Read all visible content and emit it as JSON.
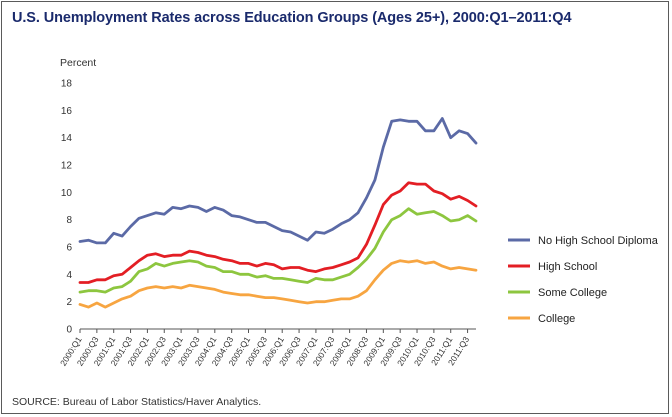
{
  "title": "U.S. Unemployment Rates across Education Groups (Ages 25+), 2000:Q1–2011:Q4",
  "source": "SOURCE: Bureau of Labor Statistics/Haver Analytics.",
  "chart_data": {
    "type": "line",
    "title": "U.S. Unemployment Rates across Education Groups (Ages 25+), 2000:Q1–2011:Q4",
    "xlabel": "",
    "ylabel": "Percent",
    "ylim": [
      0,
      18
    ],
    "yticks": [
      0,
      2,
      4,
      6,
      8,
      10,
      12,
      14,
      16,
      18
    ],
    "grid": false,
    "legend": "right",
    "x": [
      "2000:Q1",
      "2000:Q2",
      "2000:Q3",
      "2000:Q4",
      "2001:Q1",
      "2001:Q2",
      "2001:Q3",
      "2001:Q4",
      "2002:Q1",
      "2002:Q2",
      "2002:Q3",
      "2002:Q4",
      "2003:Q1",
      "2003:Q2",
      "2003:Q3",
      "2003:Q4",
      "2004:Q1",
      "2004:Q2",
      "2004:Q3",
      "2004:Q4",
      "2005:Q1",
      "2005:Q2",
      "2005:Q3",
      "2005:Q4",
      "2006:Q1",
      "2006:Q2",
      "2006:Q3",
      "2006:Q4",
      "2007:Q1",
      "2007:Q2",
      "2007:Q3",
      "2007:Q4",
      "2008:Q1",
      "2008:Q2",
      "2008:Q3",
      "2008:Q4",
      "2009:Q1",
      "2009:Q2",
      "2009:Q3",
      "2009:Q4",
      "2010:Q1",
      "2010:Q2",
      "2010:Q3",
      "2010:Q4",
      "2011:Q1",
      "2011:Q2",
      "2011:Q3",
      "2011:Q4"
    ],
    "x_tick_labels": [
      "2000:Q1",
      "2000:Q3",
      "2001:Q1",
      "2001:Q3",
      "2002:Q1",
      "2002:Q3",
      "2003:Q1",
      "2003:Q3",
      "2004:Q1",
      "2004:Q3",
      "2005:Q1",
      "2005:Q3",
      "2006:Q1",
      "2006:Q3",
      "2007:Q1",
      "2007:Q3",
      "2008:Q1",
      "2008:Q3",
      "2009:Q1",
      "2009:Q3",
      "2010:Q1",
      "2010:Q3",
      "2011:Q1",
      "2011:Q3"
    ],
    "series": [
      {
        "name": "No High School Diploma",
        "color": "#5b6aa6",
        "values": [
          6.4,
          6.5,
          6.3,
          6.3,
          7.0,
          6.8,
          7.5,
          8.1,
          8.3,
          8.5,
          8.4,
          8.9,
          8.8,
          9.0,
          8.9,
          8.6,
          8.9,
          8.7,
          8.3,
          8.2,
          8.0,
          7.8,
          7.8,
          7.5,
          7.2,
          7.1,
          6.8,
          6.5,
          7.1,
          7.0,
          7.3,
          7.7,
          8.0,
          8.5,
          9.6,
          10.9,
          13.3,
          15.2,
          15.3,
          15.2,
          15.2,
          14.5,
          14.5,
          15.4,
          14.0,
          14.5,
          14.3,
          13.6
        ]
      },
      {
        "name": "High School",
        "color": "#e31e24",
        "values": [
          3.4,
          3.4,
          3.6,
          3.6,
          3.9,
          4.0,
          4.5,
          5.0,
          5.4,
          5.5,
          5.3,
          5.4,
          5.4,
          5.7,
          5.6,
          5.4,
          5.3,
          5.1,
          5.0,
          4.8,
          4.8,
          4.6,
          4.8,
          4.7,
          4.4,
          4.5,
          4.5,
          4.3,
          4.2,
          4.4,
          4.5,
          4.7,
          4.9,
          5.2,
          6.2,
          7.6,
          9.1,
          9.8,
          10.1,
          10.7,
          10.6,
          10.6,
          10.1,
          9.9,
          9.5,
          9.7,
          9.4,
          9.0
        ]
      },
      {
        "name": "Some College",
        "color": "#8dc63f",
        "values": [
          2.7,
          2.8,
          2.8,
          2.7,
          3.0,
          3.1,
          3.5,
          4.2,
          4.4,
          4.8,
          4.6,
          4.8,
          4.9,
          5.0,
          4.9,
          4.6,
          4.5,
          4.2,
          4.2,
          4.0,
          4.0,
          3.8,
          3.9,
          3.7,
          3.7,
          3.6,
          3.5,
          3.4,
          3.7,
          3.6,
          3.6,
          3.8,
          4.0,
          4.5,
          5.1,
          5.9,
          7.1,
          8.0,
          8.3,
          8.8,
          8.4,
          8.5,
          8.6,
          8.3,
          7.9,
          8.0,
          8.3,
          7.9
        ]
      },
      {
        "name": "College",
        "color": "#f7a541",
        "values": [
          1.8,
          1.6,
          1.9,
          1.6,
          1.9,
          2.2,
          2.4,
          2.8,
          3.0,
          3.1,
          3.0,
          3.1,
          3.0,
          3.2,
          3.1,
          3.0,
          2.9,
          2.7,
          2.6,
          2.5,
          2.5,
          2.4,
          2.3,
          2.3,
          2.2,
          2.1,
          2.0,
          1.9,
          2.0,
          2.0,
          2.1,
          2.2,
          2.2,
          2.4,
          2.8,
          3.6,
          4.3,
          4.8,
          5.0,
          4.9,
          5.0,
          4.8,
          4.9,
          4.6,
          4.4,
          4.5,
          4.4,
          4.3
        ]
      }
    ]
  }
}
